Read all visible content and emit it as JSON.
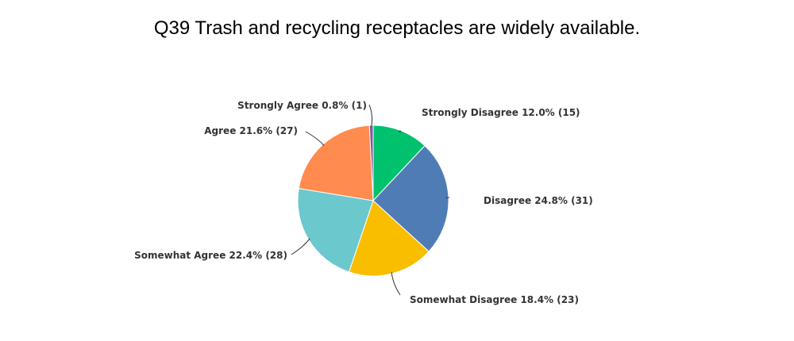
{
  "chart_data": {
    "type": "pie",
    "title": "Q39 Trash and recycling receptacles are widely available.",
    "slices": [
      {
        "name": "Strongly Disagree",
        "percent": 12.0,
        "count": 15,
        "label": "Strongly Disagree 12.0% (15)",
        "color": "#00C16E"
      },
      {
        "name": "Disagree",
        "percent": 24.8,
        "count": 31,
        "label": "Disagree 24.8% (31)",
        "color": "#507CB6"
      },
      {
        "name": "Somewhat Disagree",
        "percent": 18.4,
        "count": 23,
        "label": "Somewhat Disagree 18.4% (23)",
        "color": "#F9BE00"
      },
      {
        "name": "Somewhat Agree",
        "percent": 22.4,
        "count": 28,
        "label": "Somewhat Agree 22.4% (28)",
        "color": "#6BC8CD"
      },
      {
        "name": "Agree",
        "percent": 21.6,
        "count": 27,
        "label": "Agree 21.6% (27)",
        "color": "#FF8B4F"
      },
      {
        "name": "Strongly Agree",
        "percent": 0.8,
        "count": 1,
        "label": "Strongly Agree 0.8% (1)",
        "color": "#7D5BA6"
      }
    ],
    "legend": "none"
  }
}
